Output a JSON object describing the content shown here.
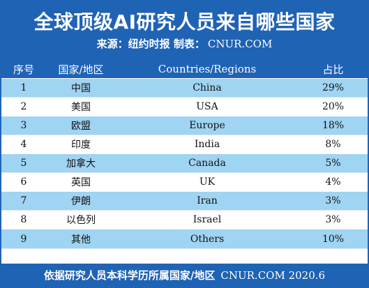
{
  "title": "全球顶级AI研究人员来自哪些国家",
  "source_label": "来源：纽约时报  制表：",
  "source_url": "CNUR.COM",
  "columns": {
    "index": "序号",
    "country_zh": "国家/地区",
    "country_en": "Countries/Regions",
    "share": "占比"
  },
  "rows": [
    {
      "index": "1",
      "country_zh": "中国",
      "country_en": "China",
      "share": "29%"
    },
    {
      "index": "2",
      "country_zh": "美国",
      "country_en": "USA",
      "share": "20%"
    },
    {
      "index": "3",
      "country_zh": "欧盟",
      "country_en": "Europe",
      "share": "18%"
    },
    {
      "index": "4",
      "country_zh": "印度",
      "country_en": "India",
      "share": "8%"
    },
    {
      "index": "5",
      "country_zh": "加拿大",
      "country_en": "Canada",
      "share": "5%"
    },
    {
      "index": "6",
      "country_zh": "英国",
      "country_en": "UK",
      "share": "4%"
    },
    {
      "index": "7",
      "country_zh": "伊朗",
      "country_en": "Iran",
      "share": "3%"
    },
    {
      "index": "8",
      "country_zh": "以色列",
      "country_en": "Israel",
      "share": "3%"
    },
    {
      "index": "9",
      "country_zh": "其他",
      "country_en": "Others",
      "share": "10%"
    }
  ],
  "footer_note": "依据研究人员本科学历所属国家/地区",
  "footer_url": "CNUR.COM 2020.6",
  "colors": {
    "header_blue": "#1f63b5",
    "row_light_blue": "#9fd4f2",
    "row_white": "#ffffff"
  }
}
